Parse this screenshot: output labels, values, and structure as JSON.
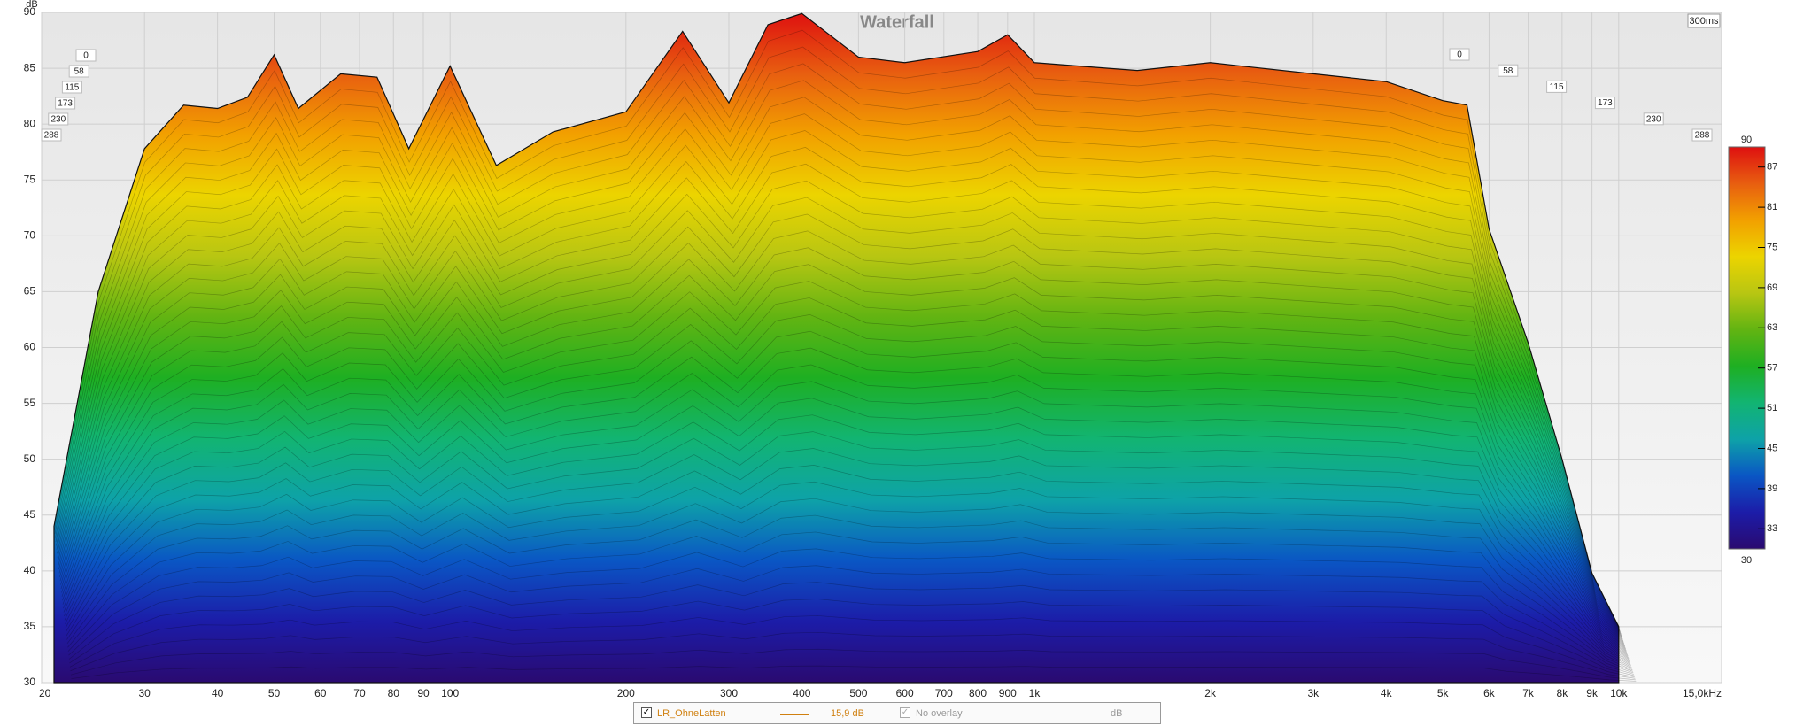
{
  "chart_data": {
    "type": "waterfall",
    "title": "Waterfall",
    "y_label": "dB",
    "time_label": "300ms",
    "xlim": [
      20,
      15000
    ],
    "log_x": true,
    "xticks": [
      20,
      30,
      40,
      50,
      60,
      70,
      80,
      90,
      100,
      200,
      300,
      400,
      500,
      600,
      700,
      800,
      900,
      {
        "value": 1000,
        "label": "1k"
      },
      {
        "value": 2000,
        "label": "2k"
      },
      {
        "value": 3000,
        "label": "3k"
      },
      {
        "value": 4000,
        "label": "4k"
      },
      {
        "value": 5000,
        "label": "5k"
      },
      {
        "value": 6000,
        "label": "6k"
      },
      {
        "value": 7000,
        "label": "7k"
      },
      {
        "value": 8000,
        "label": "8k"
      },
      {
        "value": 9000,
        "label": "9k"
      },
      {
        "value": 10000,
        "label": "10k"
      },
      {
        "value": 15000,
        "label": "15,0kHz"
      }
    ],
    "ylim": [
      30,
      90
    ],
    "yticks": [
      30,
      35,
      40,
      45,
      50,
      55,
      60,
      65,
      70,
      75,
      80,
      85,
      90
    ],
    "grid": true,
    "time_ticks": [
      0,
      58,
      115,
      173,
      230,
      288
    ],
    "zlim": [
      30,
      90
    ],
    "zticks": [
      30,
      33,
      39,
      45,
      51,
      57,
      63,
      69,
      75,
      81,
      87,
      90
    ],
    "colormap": [
      "#2a0a70",
      "#1c1ca8",
      "#0a56c4",
      "#0ea2a8",
      "#12b472",
      "#1eaf22",
      "#62b412",
      "#b8c612",
      "#ecd400",
      "#f2a000",
      "#e85e10",
      "#de1010"
    ],
    "series": [
      {
        "name": "LR_OhneLatten",
        "color": "#d08010",
        "x": [
          21,
          25,
          30,
          35,
          40,
          45,
          50,
          55,
          65,
          75,
          85,
          100,
          120,
          150,
          200,
          250,
          300,
          350,
          400,
          500,
          600,
          800,
          900,
          1000,
          1500,
          2000,
          3000,
          4000,
          5000,
          5500,
          6000,
          7000,
          8000,
          9000,
          10000
        ],
        "values": [
          44,
          65,
          77.8,
          81.7,
          81.4,
          82.4,
          86.2,
          81.4,
          84.5,
          84.2,
          77.8,
          85.2,
          76.3,
          79.3,
          81.1,
          88.3,
          81.9,
          88.9,
          89.9,
          86,
          85.5,
          86.5,
          88,
          85.5,
          84.8,
          85.5,
          84.5,
          83.8,
          82.1,
          81.7,
          70.6,
          60.4,
          50,
          39.8,
          35
        ]
      }
    ],
    "legend_value": "15,9 dB",
    "overlay": "No overlay",
    "overlay_unit": "dB"
  }
}
